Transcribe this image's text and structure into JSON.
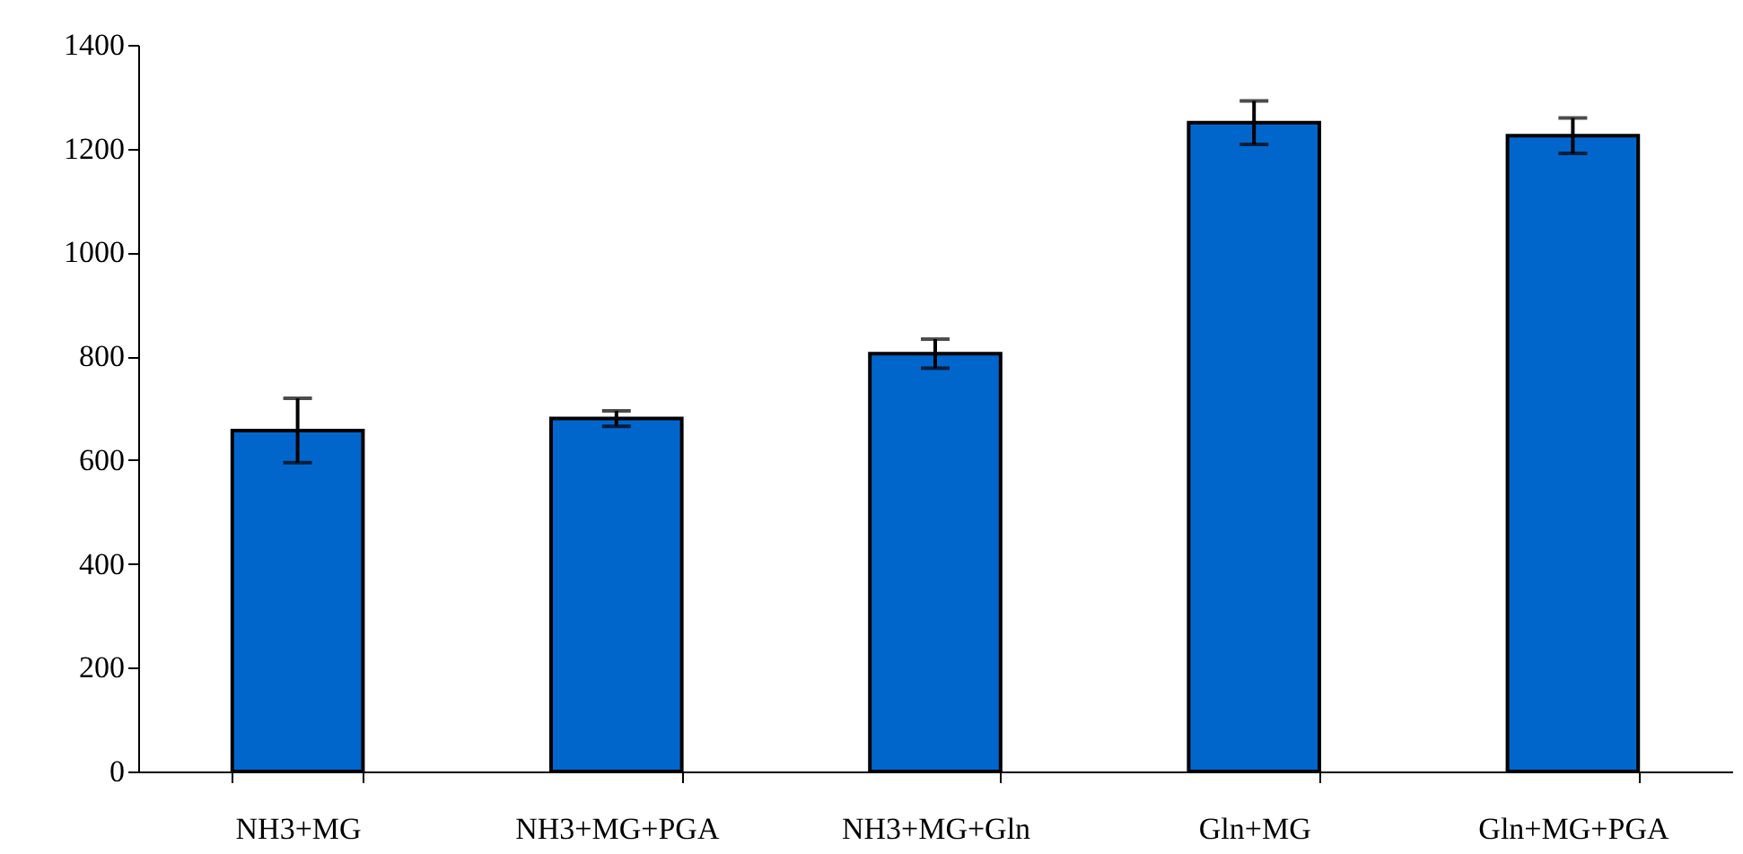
{
  "chart_data": {
    "type": "bar",
    "categories": [
      "NH3+MG",
      "NH3+MG+PGA",
      "NH3+MG+Gln",
      "Gln+MG",
      "Gln+MG+PGA"
    ],
    "values": [
      657,
      680,
      805,
      1250,
      1225
    ],
    "errors": [
      62,
      15,
      28,
      42,
      34
    ],
    "color": "#0066cc",
    "ylim": [
      0,
      1400
    ],
    "yticks": [
      0,
      200,
      400,
      600,
      800,
      1000,
      1200,
      1400
    ],
    "grid": false
  }
}
